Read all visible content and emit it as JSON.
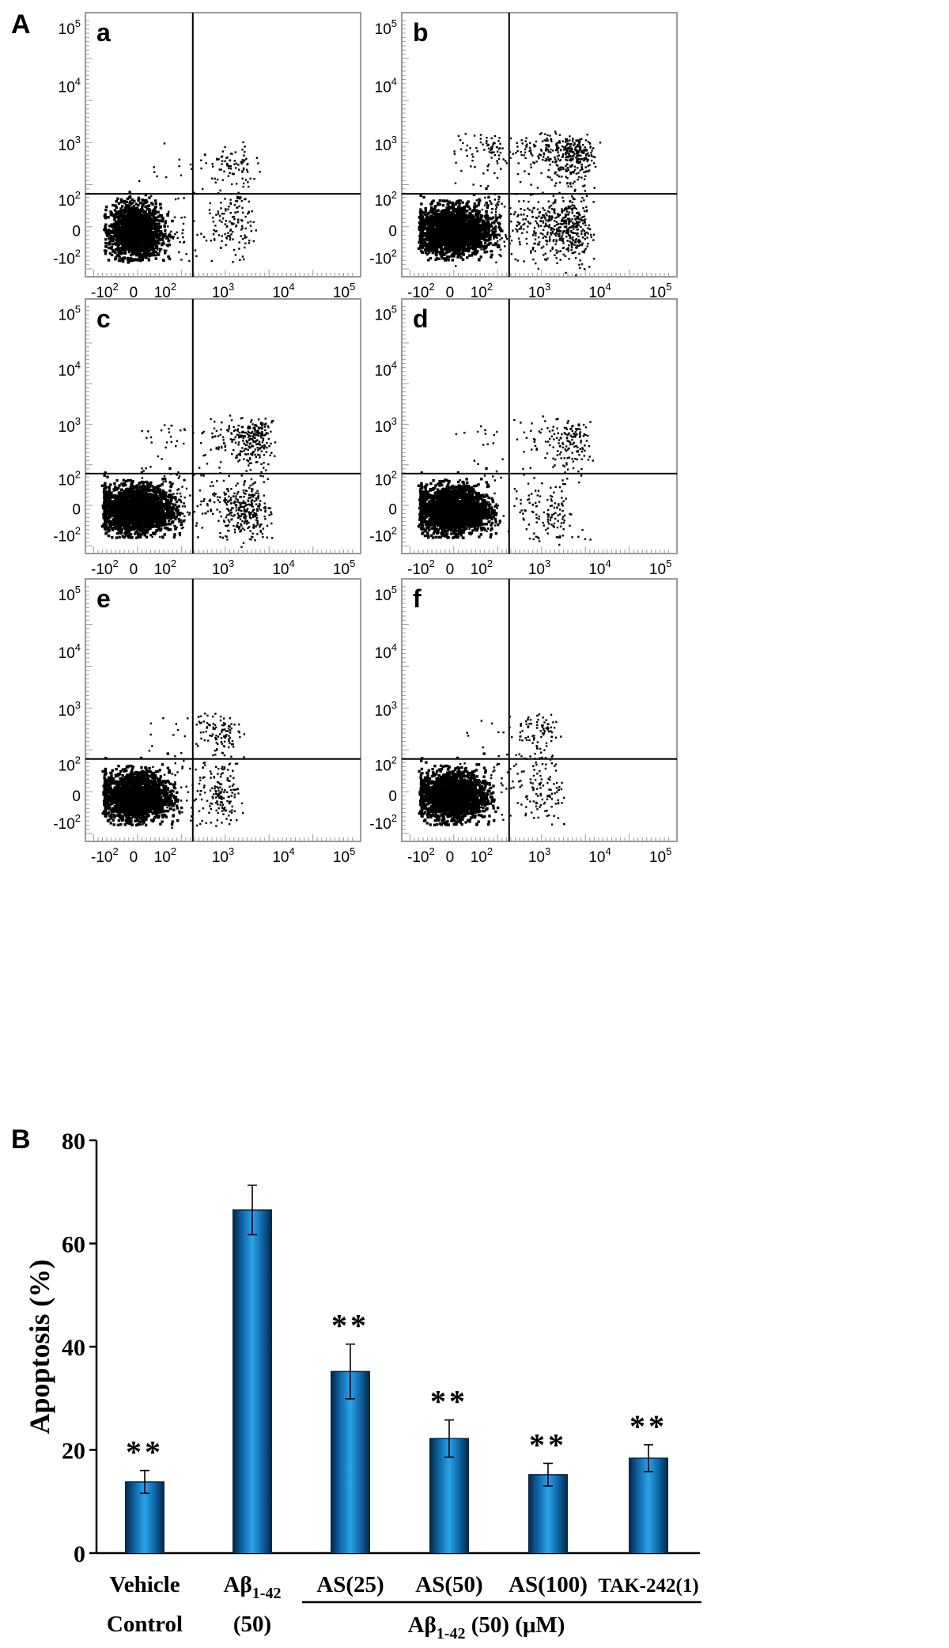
{
  "panel_labels": {
    "a": "A",
    "b": "B"
  },
  "chart_data": [
    {
      "type": "scatter",
      "panel": "a",
      "x_ticks": [
        "-10^2",
        "0",
        "10^2",
        "10^3",
        "10^4",
        "10^5"
      ],
      "y_ticks": [
        "-10^2",
        "0",
        "10^2",
        "10^3",
        "10^4",
        "10^5"
      ],
      "quadrant_x": 300,
      "quadrant_y": 130,
      "series": [
        {
          "cx": 0,
          "cy": 0,
          "sx": 40,
          "sy": 45,
          "n": 1800,
          "dense": true
        },
        {
          "cx": 60,
          "cy": -40,
          "sx": 60,
          "sy": 50,
          "n": 80
        },
        {
          "cx": 1200,
          "cy": 30,
          "sx": 900,
          "sy": 60,
          "n": 160
        },
        {
          "cx": 1300,
          "cy": 380,
          "sx": 900,
          "sy": 200,
          "n": 110
        }
      ]
    },
    {
      "type": "scatter",
      "panel": "b",
      "x_ticks": [
        "-10^2",
        "0",
        "10^2",
        "10^3",
        "10^4",
        "10^5"
      ],
      "y_ticks": [
        "-10^2",
        "0",
        "10^2",
        "10^3",
        "10^4",
        "10^5"
      ],
      "quadrant_x": 300,
      "quadrant_y": 130,
      "series": [
        {
          "cx": 0,
          "cy": 0,
          "sx": 60,
          "sy": 40,
          "n": 2200,
          "dense": true
        },
        {
          "cx": 1500,
          "cy": 10,
          "sx": 2200,
          "sy": 50,
          "n": 600
        },
        {
          "cx": 2500,
          "cy": 650,
          "sx": 2200,
          "sy": 400,
          "n": 520
        }
      ]
    },
    {
      "type": "scatter",
      "panel": "c",
      "x_ticks": [
        "-10^2",
        "0",
        "10^2",
        "10^3",
        "10^4",
        "10^5"
      ],
      "y_ticks": [
        "-10^2",
        "0",
        "10^2",
        "10^3",
        "10^4",
        "10^5"
      ],
      "quadrant_x": 300,
      "quadrant_y": 130,
      "series": [
        {
          "cx": 0,
          "cy": 0,
          "sx": 60,
          "sy": 40,
          "n": 2200,
          "dense": true
        },
        {
          "cx": 1500,
          "cy": 10,
          "sx": 1600,
          "sy": 50,
          "n": 420
        },
        {
          "cx": 2500,
          "cy": 550,
          "sx": 1600,
          "sy": 350,
          "n": 330
        }
      ]
    },
    {
      "type": "scatter",
      "panel": "d",
      "x_ticks": [
        "-10^2",
        "0",
        "10^2",
        "10^3",
        "10^4",
        "10^5"
      ],
      "y_ticks": [
        "-10^2",
        "0",
        "10^2",
        "10^3",
        "10^4",
        "10^5"
      ],
      "quadrant_x": 300,
      "quadrant_y": 130,
      "series": [
        {
          "cx": 0,
          "cy": 0,
          "sx": 60,
          "sy": 40,
          "n": 2200,
          "dense": true
        },
        {
          "cx": 1000,
          "cy": 0,
          "sx": 1200,
          "sy": 50,
          "n": 160
        },
        {
          "cx": 2500,
          "cy": 500,
          "sx": 1800,
          "sy": 350,
          "n": 190
        }
      ]
    },
    {
      "type": "scatter",
      "panel": "e",
      "x_ticks": [
        "-10^2",
        "0",
        "10^2",
        "10^3",
        "10^4",
        "10^5"
      ],
      "y_ticks": [
        "-10^2",
        "0",
        "10^2",
        "10^3",
        "10^4",
        "10^5"
      ],
      "quadrant_x": 300,
      "quadrant_y": 130,
      "series": [
        {
          "cx": 0,
          "cy": 0,
          "sx": 55,
          "sy": 40,
          "n": 2000,
          "dense": true
        },
        {
          "cx": 700,
          "cy": 10,
          "sx": 500,
          "sy": 60,
          "n": 190
        },
        {
          "cx": 800,
          "cy": 400,
          "sx": 500,
          "sy": 220,
          "n": 130
        }
      ]
    },
    {
      "type": "scatter",
      "panel": "f",
      "x_ticks": [
        "-10^2",
        "0",
        "10^2",
        "10^3",
        "10^4",
        "10^5"
      ],
      "y_ticks": [
        "-10^2",
        "0",
        "10^2",
        "10^3",
        "10^4",
        "10^5"
      ],
      "quadrant_x": 300,
      "quadrant_y": 130,
      "series": [
        {
          "cx": 0,
          "cy": 0,
          "sx": 55,
          "sy": 40,
          "n": 2000,
          "dense": true
        },
        {
          "cx": 800,
          "cy": 20,
          "sx": 700,
          "sy": 60,
          "n": 140
        },
        {
          "cx": 900,
          "cy": 400,
          "sx": 500,
          "sy": 220,
          "n": 110
        }
      ]
    },
    {
      "type": "bar",
      "categories": [
        [
          "Vehicle",
          "Control"
        ],
        [
          "Aβ1-42",
          "(50)"
        ],
        [
          "AS(25)"
        ],
        [
          "AS(50)"
        ],
        [
          "AS(100)"
        ],
        [
          "TAK-242(1)"
        ]
      ],
      "values": [
        13.8,
        66.5,
        35.2,
        22.2,
        15.2,
        18.4
      ],
      "errors": [
        2.2,
        4.8,
        5.3,
        3.6,
        2.2,
        2.6
      ],
      "significance": [
        "**",
        "",
        "**",
        "**",
        "**",
        "**"
      ],
      "ylabel": "Apoptosis (%)",
      "ylim": [
        0,
        80
      ],
      "yticks": [
        0,
        20,
        40,
        60,
        80
      ],
      "group_label": "Aβ1-42 (50) (μM)",
      "bar_color": "#1a8fd6"
    }
  ]
}
